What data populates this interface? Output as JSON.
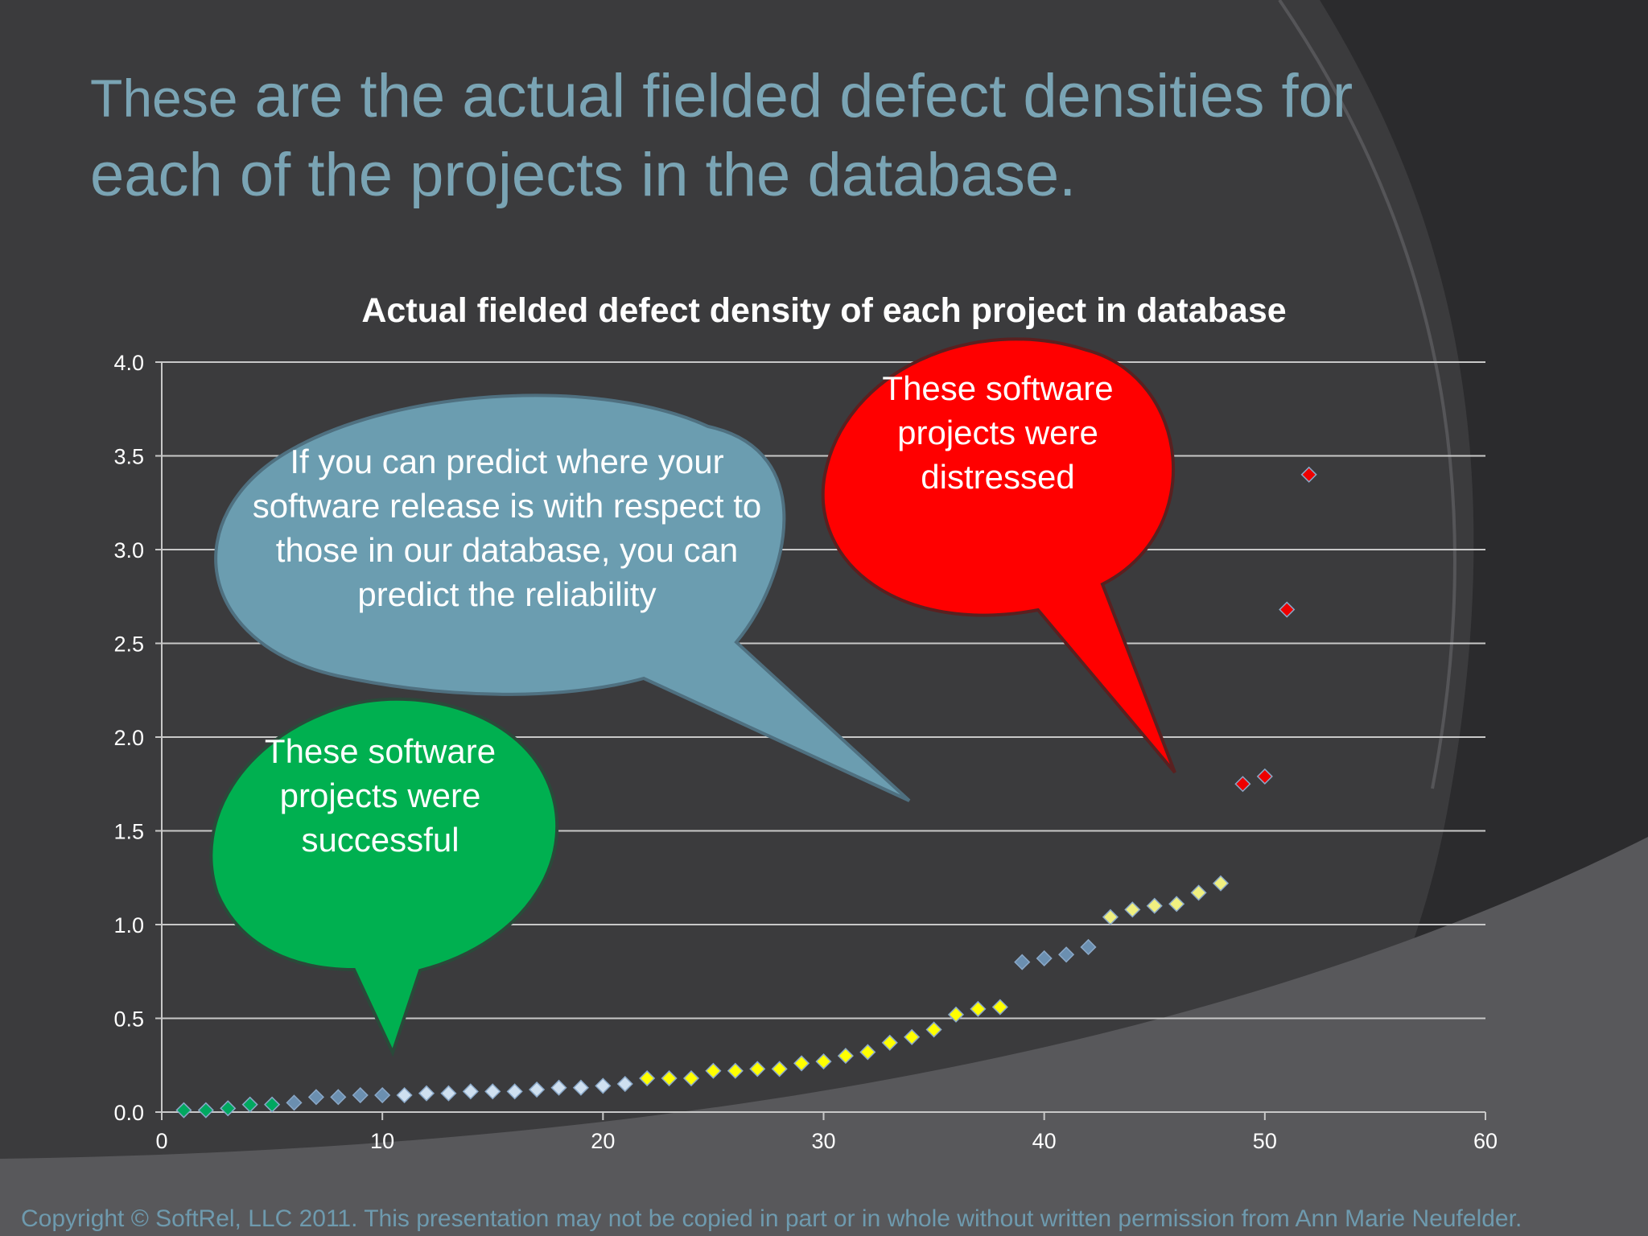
{
  "slide": {
    "title_first_word": "These",
    "title_rest": " are the actual fielded defect densities for each of the projects in the database.",
    "copyright": "Copyright © SoftRel, LLC 2011.  This presentation may not be copied in part or in whole without written permission from Ann Marie Neufelder."
  },
  "callouts": {
    "blue": "If you can predict where your software release is with respect to those in our database, you can predict the reliability",
    "red": "These software projects were distressed",
    "green": "These software projects were successful"
  },
  "colors": {
    "background": "#3b3b3d",
    "title": "#7aa4b4",
    "blue_callout": "#6b9db0",
    "red_callout": "#ff0000",
    "green_callout": "#00b050",
    "point_green": "#00a860",
    "point_steel": "#6b8fb0",
    "point_light": "#cfe0f0",
    "point_yellow": "#ffff00",
    "point_pale_yellow": "#f0f080",
    "point_red": "#ee0000"
  },
  "chart_data": {
    "type": "scatter",
    "title": "Actual fielded defect density of each project in database",
    "xlabel": "",
    "ylabel": "",
    "xlim": [
      0,
      60
    ],
    "ylim": [
      0,
      4.0
    ],
    "xticks": [
      "0",
      "10",
      "20",
      "30",
      "40",
      "50",
      "60"
    ],
    "yticks": [
      "0.0",
      "0.5",
      "1.0",
      "1.5",
      "2.0",
      "2.5",
      "3.0",
      "3.5",
      "4.0"
    ],
    "grid": "horizontal",
    "legend": "none",
    "series": [
      {
        "color": "point_green",
        "points": [
          [
            1,
            0.01
          ],
          [
            2,
            0.01
          ],
          [
            3,
            0.02
          ],
          [
            4,
            0.04
          ],
          [
            5,
            0.04
          ]
        ]
      },
      {
        "color": "point_steel",
        "points": [
          [
            6,
            0.05
          ],
          [
            7,
            0.08
          ],
          [
            8,
            0.08
          ],
          [
            9,
            0.09
          ],
          [
            10,
            0.09
          ]
        ]
      },
      {
        "color": "point_light",
        "points": [
          [
            11,
            0.09
          ],
          [
            12,
            0.1
          ],
          [
            13,
            0.1
          ],
          [
            14,
            0.11
          ],
          [
            15,
            0.11
          ],
          [
            16,
            0.11
          ],
          [
            17,
            0.12
          ],
          [
            18,
            0.13
          ],
          [
            19,
            0.13
          ],
          [
            20,
            0.14
          ],
          [
            21,
            0.15
          ]
        ]
      },
      {
        "color": "point_yellow",
        "points": [
          [
            22,
            0.18
          ],
          [
            23,
            0.18
          ],
          [
            24,
            0.18
          ],
          [
            25,
            0.22
          ],
          [
            26,
            0.22
          ],
          [
            27,
            0.23
          ],
          [
            28,
            0.23
          ],
          [
            29,
            0.26
          ],
          [
            30,
            0.27
          ],
          [
            31,
            0.3
          ],
          [
            32,
            0.32
          ],
          [
            33,
            0.37
          ],
          [
            34,
            0.4
          ],
          [
            35,
            0.44
          ],
          [
            36,
            0.52
          ],
          [
            37,
            0.55
          ],
          [
            38,
            0.56
          ]
        ]
      },
      {
        "color": "point_steel",
        "points": [
          [
            39,
            0.8
          ],
          [
            40,
            0.82
          ],
          [
            41,
            0.84
          ],
          [
            42,
            0.88
          ]
        ]
      },
      {
        "color": "point_pale_yellow",
        "points": [
          [
            43,
            1.04
          ],
          [
            44,
            1.08
          ],
          [
            45,
            1.1
          ],
          [
            46,
            1.11
          ],
          [
            47,
            1.17
          ],
          [
            48,
            1.22
          ]
        ]
      },
      {
        "color": "point_red",
        "points": [
          [
            49,
            1.75
          ],
          [
            50,
            1.79
          ],
          [
            51,
            2.68
          ],
          [
            52,
            3.4
          ]
        ]
      }
    ]
  }
}
